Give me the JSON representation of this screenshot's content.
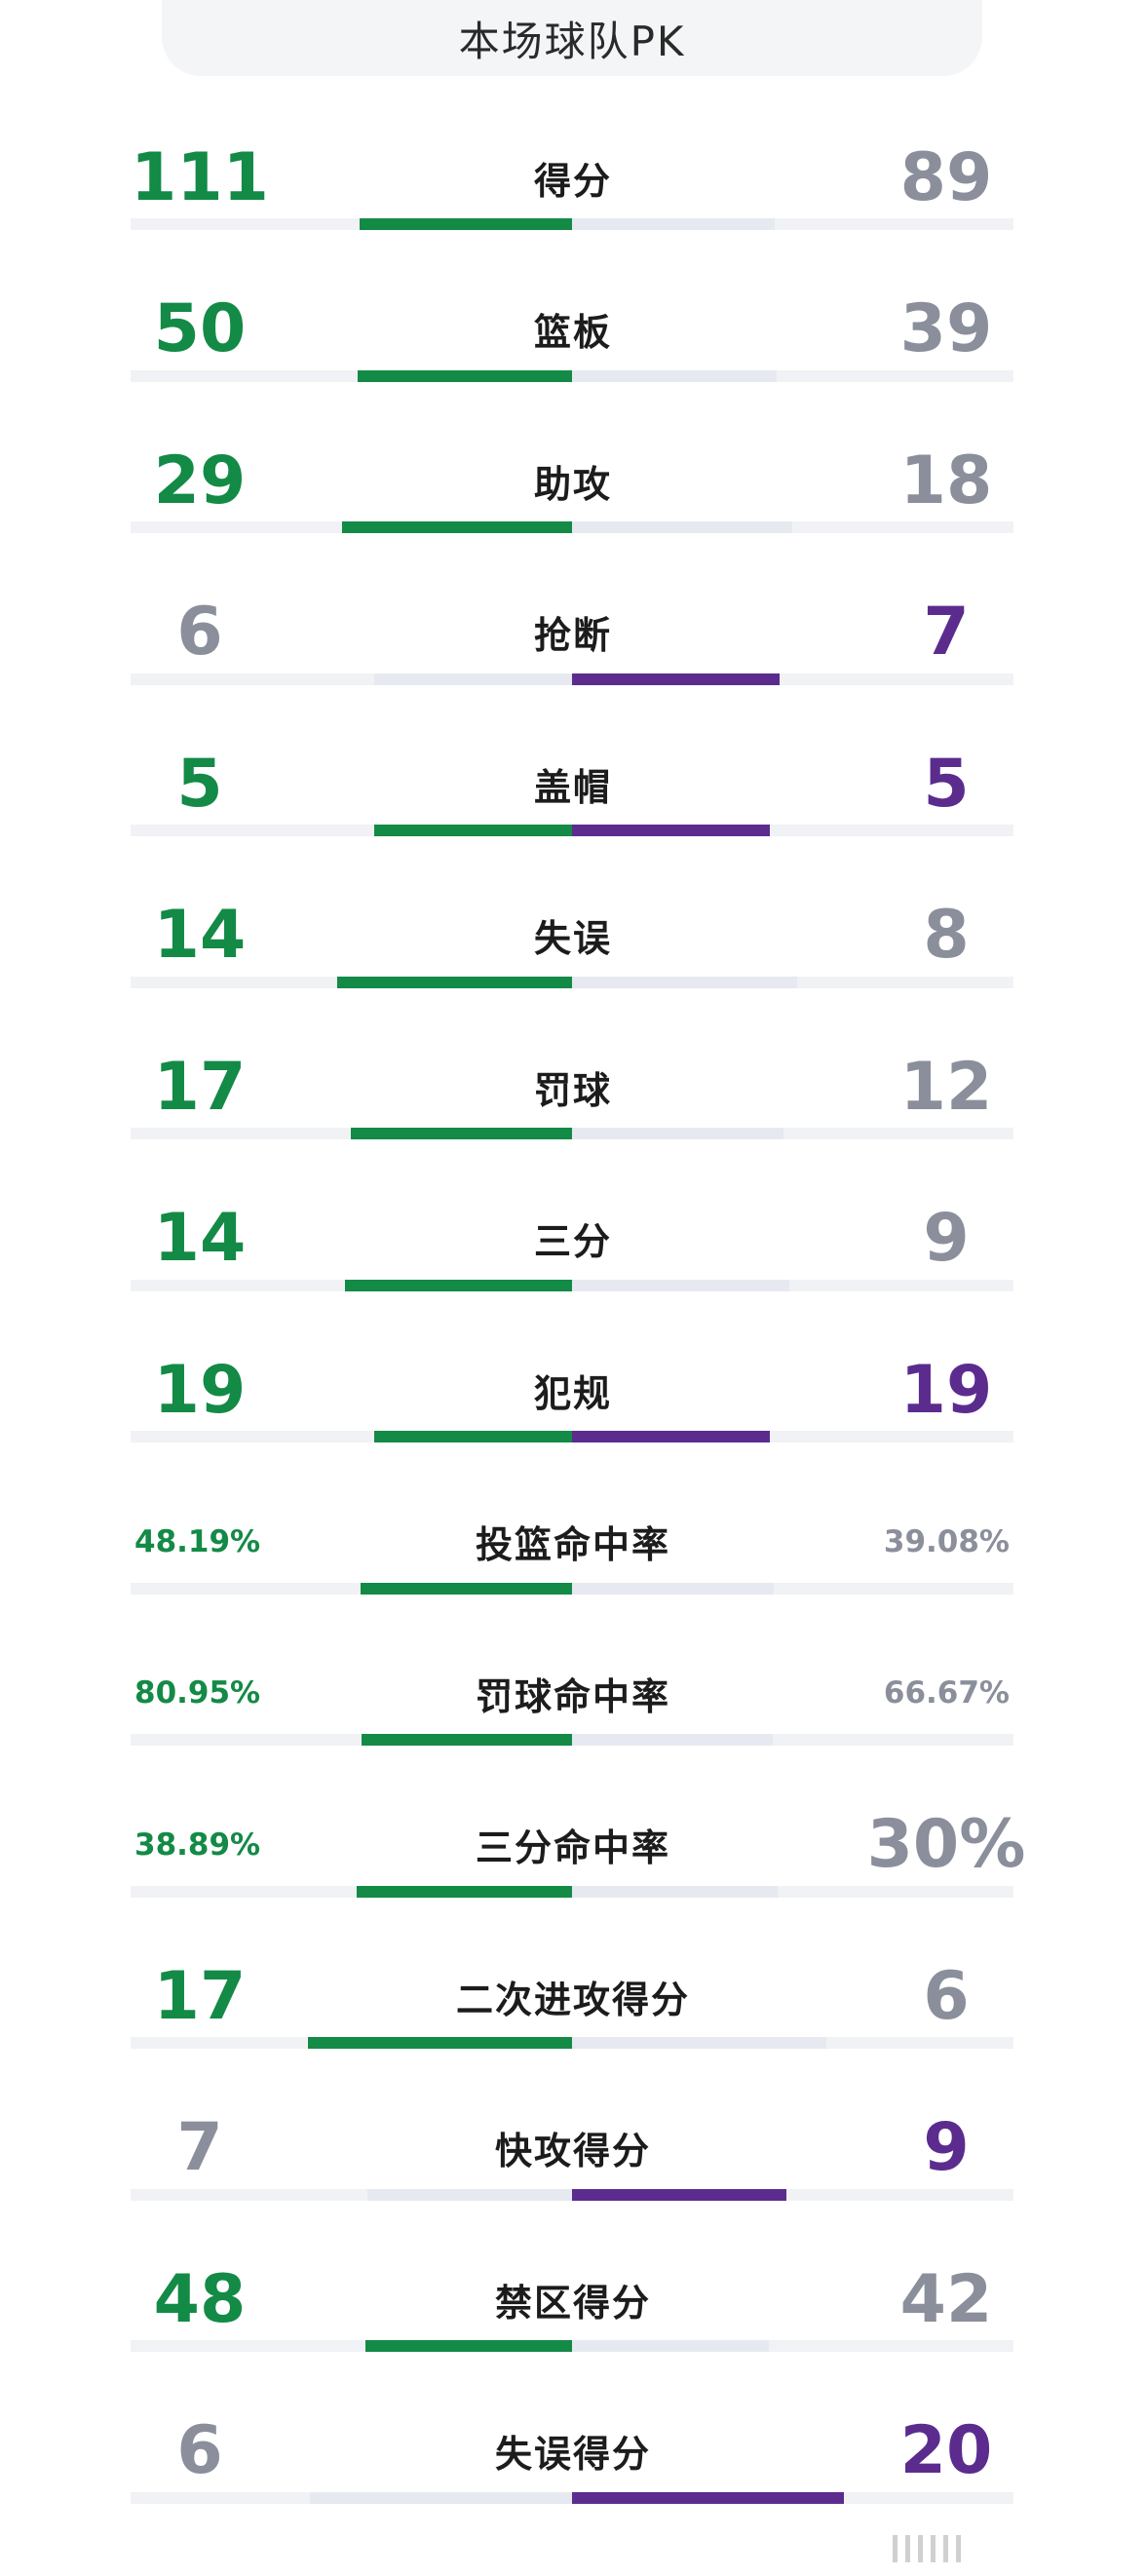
{
  "title": "本场球队PK",
  "colors": {
    "home": "#138a46",
    "away": "#5b2c8e",
    "loser": "#8b8f9b"
  },
  "stats": [
    {
      "label": "得分",
      "home": "111",
      "away": "89",
      "home_value": 111,
      "away_value": 89,
      "leader": "home",
      "size": "big"
    },
    {
      "label": "篮板",
      "home": "50",
      "away": "39",
      "home_value": 50,
      "away_value": 39,
      "leader": "home",
      "size": "big"
    },
    {
      "label": "助攻",
      "home": "29",
      "away": "18",
      "home_value": 29,
      "away_value": 18,
      "leader": "home",
      "size": "big"
    },
    {
      "label": "抢断",
      "home": "6",
      "away": "7",
      "home_value": 6,
      "away_value": 7,
      "leader": "away",
      "size": "big"
    },
    {
      "label": "盖帽",
      "home": "5",
      "away": "5",
      "home_value": 5,
      "away_value": 5,
      "leader": "tie",
      "size": "big"
    },
    {
      "label": "失误",
      "home": "14",
      "away": "8",
      "home_value": 14,
      "away_value": 8,
      "leader": "home",
      "size": "big"
    },
    {
      "label": "罚球",
      "home": "17",
      "away": "12",
      "home_value": 17,
      "away_value": 12,
      "leader": "home",
      "size": "big"
    },
    {
      "label": "三分",
      "home": "14",
      "away": "9",
      "home_value": 14,
      "away_value": 9,
      "leader": "home",
      "size": "big"
    },
    {
      "label": "犯规",
      "home": "19",
      "away": "19",
      "home_value": 19,
      "away_value": 19,
      "leader": "tie",
      "size": "big"
    },
    {
      "label": "投篮命中率",
      "home": "48.19%",
      "away": "39.08%",
      "home_value": 48.19,
      "away_value": 39.08,
      "leader": "home",
      "size": "small"
    },
    {
      "label": "罚球命中率",
      "home": "80.95%",
      "away": "66.67%",
      "home_value": 80.95,
      "away_value": 66.67,
      "leader": "home",
      "size": "small"
    },
    {
      "label": "三分命中率",
      "home": "38.89%",
      "away": "30%",
      "home_value": 38.89,
      "away_value": 30,
      "leader": "home",
      "size": "small",
      "away_size": "big"
    },
    {
      "label": "二次进攻得分",
      "home": "17",
      "away": "6",
      "home_value": 17,
      "away_value": 6,
      "leader": "home",
      "size": "big"
    },
    {
      "label": "快攻得分",
      "home": "7",
      "away": "9",
      "home_value": 7,
      "away_value": 9,
      "leader": "away",
      "size": "big"
    },
    {
      "label": "禁区得分",
      "home": "48",
      "away": "42",
      "home_value": 48,
      "away_value": 42,
      "leader": "home",
      "size": "big"
    },
    {
      "label": "失误得分",
      "home": "6",
      "away": "20",
      "home_value": 6,
      "away_value": 20,
      "leader": "away",
      "size": "big"
    }
  ]
}
